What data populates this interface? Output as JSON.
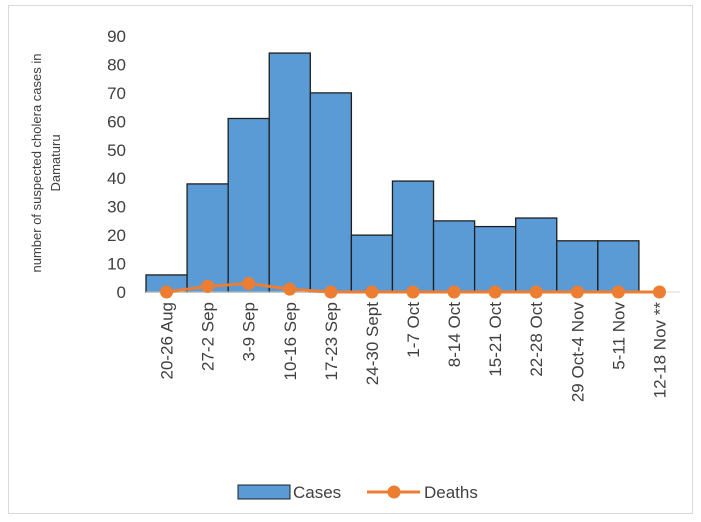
{
  "chart_data": {
    "type": "bar",
    "title": "",
    "xlabel": "",
    "ylabel_lines": [
      "number of suspected cholera cases in",
      "Damaturu"
    ],
    "ylim": [
      0,
      90
    ],
    "yticks": [
      0,
      10,
      20,
      30,
      40,
      50,
      60,
      70,
      80,
      90
    ],
    "categories": [
      "20-26 Aug",
      "27-2 Sep",
      "3-9 Sep",
      "10-16 Sep",
      "17-23 Sep",
      "24-30 Sept",
      "1-7 Oct",
      "8-14 Oct",
      "15-21 Oct",
      "22-28 Oct",
      "29 Oct-4 Nov",
      "5-11 Nov",
      "12-18 Nov **"
    ],
    "series": [
      {
        "name": "Cases",
        "kind": "bar",
        "color": "#5b9bd5",
        "values": [
          6,
          38,
          61,
          84,
          70,
          20,
          39,
          25,
          23,
          26,
          18,
          18,
          0
        ]
      },
      {
        "name": "Deaths",
        "kind": "line",
        "color": "#ed7d31",
        "values": [
          0,
          2,
          3,
          1,
          0,
          0,
          0,
          0,
          0,
          0,
          0,
          0,
          0
        ]
      }
    ],
    "legend_position": "bottom",
    "grid": false
  }
}
